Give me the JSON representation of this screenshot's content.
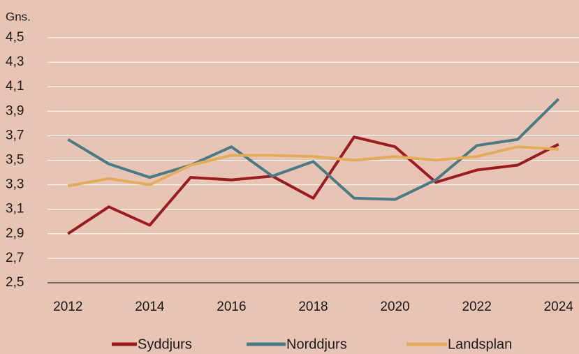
{
  "chart_data": {
    "type": "line",
    "ylabel": "Gns.",
    "x": [
      2012,
      2013,
      2014,
      2015,
      2016,
      2017,
      2018,
      2019,
      2020,
      2021,
      2022,
      2023,
      2024
    ],
    "xlim": [
      2011.5,
      2024.5
    ],
    "xticks": [
      2012,
      2014,
      2016,
      2018,
      2020,
      2022,
      2024
    ],
    "ylim": [
      2.5,
      4.5
    ],
    "yticks": [
      {
        "value": 2.5,
        "label": "2,5"
      },
      {
        "value": 2.7,
        "label": "2,7"
      },
      {
        "value": 2.9,
        "label": "2,9"
      },
      {
        "value": 3.1,
        "label": "3,1"
      },
      {
        "value": 3.3,
        "label": "3,3"
      },
      {
        "value": 3.5,
        "label": "3,5"
      },
      {
        "value": 3.7,
        "label": "3,7"
      },
      {
        "value": 3.9,
        "label": "3,9"
      },
      {
        "value": 4.1,
        "label": "4,1"
      },
      {
        "value": 4.3,
        "label": "4,3"
      },
      {
        "value": 4.5,
        "label": "4,5"
      }
    ],
    "grid": true,
    "legend": "bottom",
    "series": [
      {
        "name": "Syddjurs",
        "color": "#9b1c1f",
        "values": [
          2.9,
          3.12,
          2.97,
          3.36,
          3.34,
          3.37,
          3.19,
          3.69,
          3.61,
          3.32,
          3.42,
          3.46,
          3.63
        ]
      },
      {
        "name": "Norddjurs",
        "color": "#4a7a86",
        "values": [
          3.67,
          3.47,
          3.36,
          3.46,
          3.61,
          3.37,
          3.49,
          3.19,
          3.18,
          3.34,
          3.62,
          3.67,
          4.0
        ]
      },
      {
        "name": "Landsplan",
        "color": "#e3ab5a",
        "values": [
          3.29,
          3.35,
          3.3,
          3.46,
          3.54,
          3.54,
          3.53,
          3.5,
          3.53,
          3.5,
          3.53,
          3.61,
          3.59
        ]
      }
    ]
  }
}
